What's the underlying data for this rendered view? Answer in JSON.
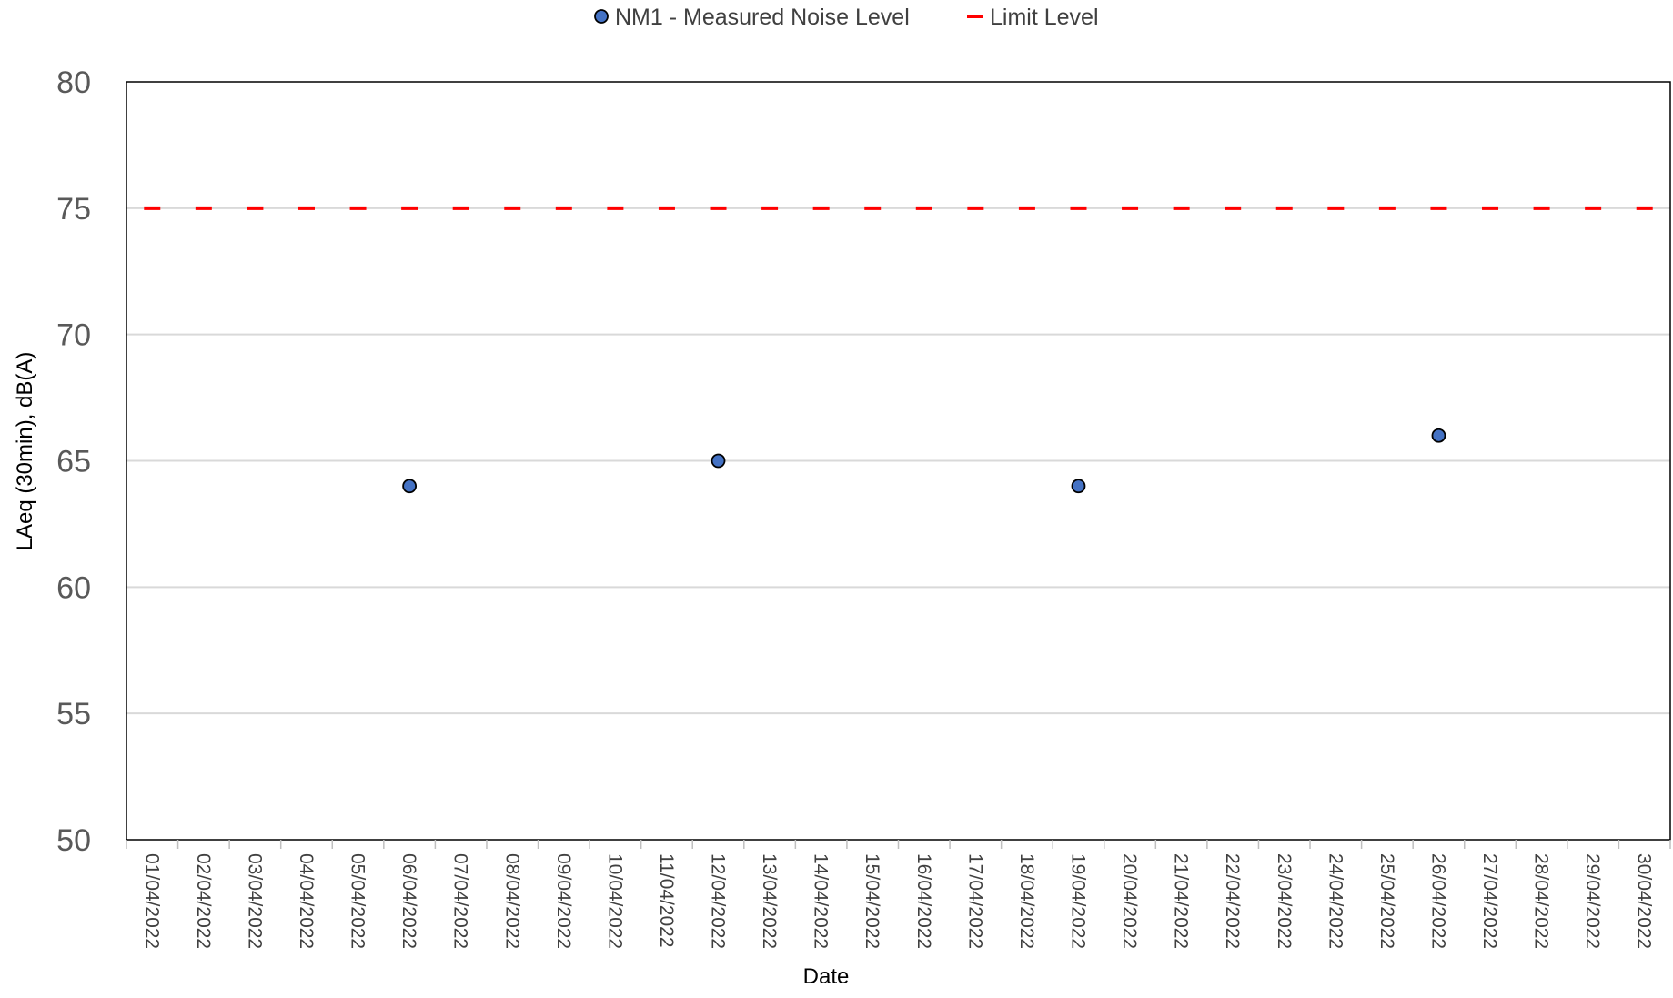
{
  "chart_data": {
    "type": "scatter",
    "title": "",
    "xlabel": "Date",
    "ylabel": "LAeq (30min), dB(A)",
    "x_categories": [
      "01/04/2022",
      "02/04/2022",
      "03/04/2022",
      "04/04/2022",
      "05/04/2022",
      "06/04/2022",
      "07/04/2022",
      "08/04/2022",
      "09/04/2022",
      "10/04/2022",
      "11/04/2022",
      "12/04/2022",
      "13/04/2022",
      "14/04/2022",
      "15/04/2022",
      "16/04/2022",
      "17/04/2022",
      "18/04/2022",
      "19/04/2022",
      "20/04/2022",
      "21/04/2022",
      "22/04/2022",
      "23/04/2022",
      "24/04/2022",
      "25/04/2022",
      "26/04/2022",
      "27/04/2022",
      "28/04/2022",
      "29/04/2022",
      "30/04/2022"
    ],
    "ylim": [
      50,
      80
    ],
    "y_ticks": [
      50,
      55,
      60,
      65,
      70,
      75,
      80
    ],
    "grid": true,
    "legend_position": "top-center",
    "series": [
      {
        "name": "NM1 - Measured Noise Level",
        "marker": "circle",
        "color": "#4472C4",
        "points": [
          {
            "x": "06/04/2022",
            "y": 64
          },
          {
            "x": "12/04/2022",
            "y": 65
          },
          {
            "x": "19/04/2022",
            "y": 64
          },
          {
            "x": "26/04/2022",
            "y": 66
          }
        ]
      },
      {
        "name": "Limit Level",
        "marker": "dash",
        "color": "#FF0000",
        "value": 75
      }
    ]
  }
}
